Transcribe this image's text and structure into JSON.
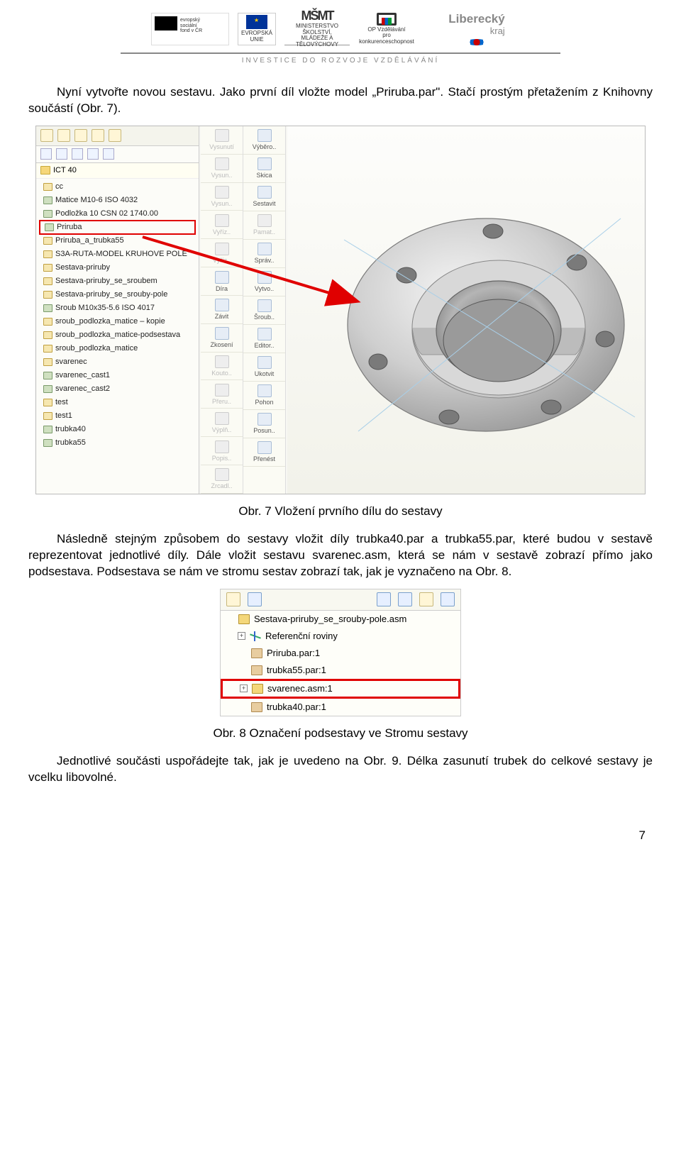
{
  "logos": {
    "esf": {
      "line1": "evropský",
      "line2": "sociální",
      "line3": "fond v ČR"
    },
    "eu_label": "EVROPSKÁ UNIE",
    "msmt_glyph": "MŠMT",
    "msmt_line1": "MINISTERSTVO ŠKOLSTVÍ,",
    "msmt_line2": "MLÁDEŽE A TĚLOVÝCHOVY",
    "op_line1": "OP Vzdělávání",
    "op_line2": "pro konkurenceschopnost",
    "liberecky": "Liberecký",
    "kraj": "kraj"
  },
  "tagline": "INVESTICE DO ROZVOJE VZDĚLÁVÁNÍ",
  "para1": "Nyní vytvořte novou sestavu. Jako první díl vložte model „Priruba.par\". Stačí prostým přetažením z Knihovny součástí (Obr. 7).",
  "fig7": {
    "folder": "ICT 40",
    "tree": [
      {
        "label": "cc",
        "icon": "asm"
      },
      {
        "label": "Matice M10-6 ISO 4032",
        "icon": "part"
      },
      {
        "label": "Podložka 10 CSN 02 1740.00",
        "icon": "part"
      },
      {
        "label": "Priruba",
        "icon": "part",
        "highlight": true
      },
      {
        "label": "Priruba_a_trubka55",
        "icon": "asm"
      },
      {
        "label": "S3A-RUTA-MODEL KRUHOVE POLE",
        "icon": "asm"
      },
      {
        "label": "Sestava-priruby",
        "icon": "asm"
      },
      {
        "label": "Sestava-priruby_se_sroubem",
        "icon": "asm"
      },
      {
        "label": "Sestava-priruby_se_srouby-pole",
        "icon": "asm"
      },
      {
        "label": "Sroub M10x35-5.6 ISO 4017",
        "icon": "part"
      },
      {
        "label": "sroub_podlozka_matice – kopie",
        "icon": "asm"
      },
      {
        "label": "sroub_podlozka_matice-podsestava",
        "icon": "asm"
      },
      {
        "label": "sroub_podlozka_matice",
        "icon": "asm"
      },
      {
        "label": "svarenec",
        "icon": "asm"
      },
      {
        "label": "svarenec_cast1",
        "icon": "part"
      },
      {
        "label": "svarenec_cast2",
        "icon": "part"
      },
      {
        "label": "test",
        "icon": "asm"
      },
      {
        "label": "test1",
        "icon": "asm"
      },
      {
        "label": "trubka40",
        "icon": "part"
      },
      {
        "label": "trubka55",
        "icon": "part"
      }
    ],
    "ribbon_left": [
      {
        "label": "Vysunutí",
        "disabled": true
      },
      {
        "label": "Vysun..",
        "disabled": true
      },
      {
        "label": "Vysun..",
        "disabled": true
      },
      {
        "label": "Vyříz..",
        "disabled": true
      },
      {
        "label": "Vyříz..",
        "disabled": true
      },
      {
        "label": "Díra",
        "disabled": false
      },
      {
        "label": "Závit",
        "disabled": false
      },
      {
        "label": "Zkosení",
        "disabled": false
      },
      {
        "label": "Kouto..",
        "disabled": true
      },
      {
        "label": "Přeru..",
        "disabled": true
      },
      {
        "label": "Výplň..",
        "disabled": true
      },
      {
        "label": "Popis..",
        "disabled": true
      },
      {
        "label": "Zrcadl..",
        "disabled": true
      },
      {
        "label": "Pole p..",
        "disabled": true
      },
      {
        "label": "Pole p..",
        "disabled": true
      },
      {
        "label": "Zrcadl",
        "disabled": true
      }
    ],
    "ribbon_right": [
      {
        "label": "Výběro..",
        "disabled": false
      },
      {
        "label": "Skica",
        "disabled": false
      },
      {
        "label": "Sestavit",
        "disabled": false
      },
      {
        "label": "Pamat..",
        "disabled": true
      },
      {
        "label": "Správ..",
        "disabled": false
      },
      {
        "label": "Vytvo..",
        "disabled": false
      },
      {
        "label": "Šroub..",
        "disabled": false
      },
      {
        "label": "Editor..",
        "disabled": false
      },
      {
        "label": "Ukotvit",
        "disabled": false
      },
      {
        "label": "Pohon",
        "disabled": false
      },
      {
        "label": "Posun..",
        "disabled": false
      },
      {
        "label": "Přenést",
        "disabled": false
      }
    ],
    "arrow_color": "#e00000",
    "flange_body": "#d4d4d4",
    "flange_edge": "#8a8a8a",
    "viewport_bg": "#f7f7f0",
    "highlight_color": "#e00000"
  },
  "cap7": "Obr. 7 Vložení prvního dílu do sestavy",
  "para2": "Následně stejným způsobem do sestavy vložit díly trubka40.par a trubka55.par, které budou v sestavě reprezentovat jednotlivé díly. Dále vložit sestavu svarenec.asm, která se nám v sestavě zobrazí přímo jako podsestava. Podsestava se nám ve stromu sestav zobrazí tak, jak je vyznačeno na Obr. 8.",
  "fig8": {
    "rows": [
      {
        "level": 1,
        "exp": "",
        "icon": "asm",
        "label": "Sestava-priruby_se_srouby-pole.asm"
      },
      {
        "level": 2,
        "exp": "+",
        "icon": "ref",
        "label": "Referenční roviny"
      },
      {
        "level": 2,
        "exp": "",
        "icon": "part",
        "label": "Priruba.par:1"
      },
      {
        "level": 2,
        "exp": "",
        "icon": "part",
        "label": "trubka55.par:1"
      },
      {
        "level": 2,
        "exp": "+",
        "icon": "asm",
        "label": "svarenec.asm:1",
        "highlight": true
      },
      {
        "level": 2,
        "exp": "",
        "icon": "part",
        "label": "trubka40.par:1"
      }
    ],
    "highlight_color": "#e00000"
  },
  "cap8": "Obr. 8 Označení podsestavy ve Stromu sestavy",
  "para3": "Jednotlivé součásti uspořádejte tak, jak je uvedeno na Obr. 9. Délka zasunutí trubek do celkové sestavy je vcelku libovolné.",
  "page_number": "7"
}
